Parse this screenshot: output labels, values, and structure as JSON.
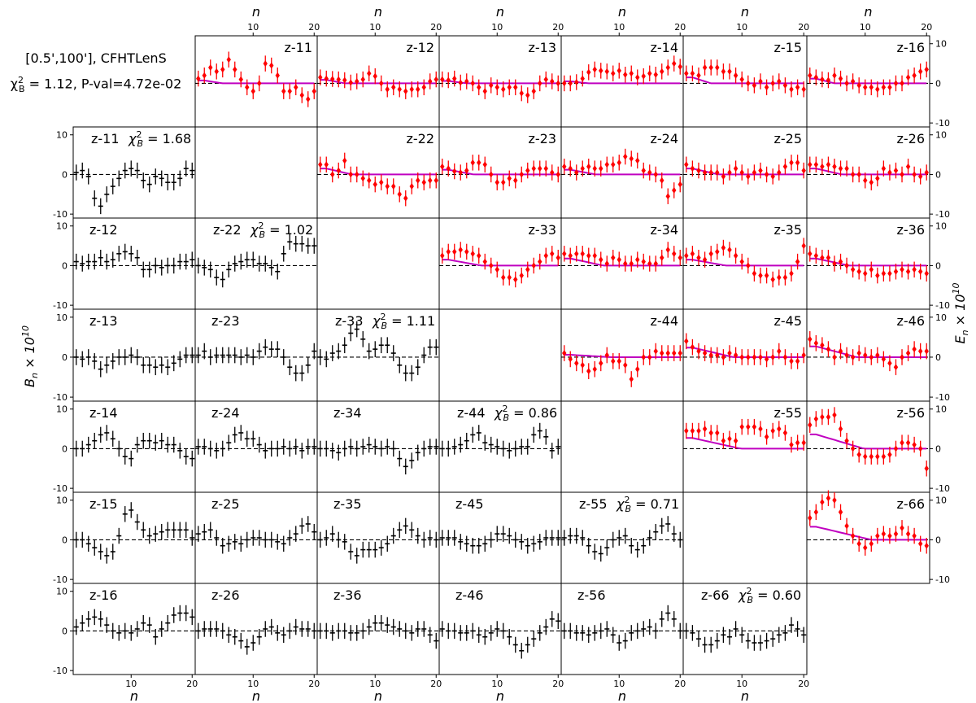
{
  "figure": {
    "header_line1": "[0.5',100'],  CFHTLenS",
    "header_line2_prefix": "χ",
    "header_line2": "= 1.12, P-val=4.72e-02",
    "x_label": "n",
    "b_label": "Bn × 10^10",
    "e_label": "En × 10^10",
    "x_ticks": [
      10,
      20
    ],
    "y_ticks": [
      -10,
      0,
      10
    ]
  },
  "chart_data": {
    "type": "scatter",
    "xlim": [
      0.5,
      20.5
    ],
    "ylim": [
      -11,
      12
    ],
    "grid": false,
    "colors": {
      "e_points": "#ff0000",
      "b_points": "#000000",
      "model": "#c000c0",
      "zero_line": "#000000"
    },
    "e_modes": [
      {
        "label": "z-11",
        "values": [
          1.2,
          2,
          4,
          3,
          3.5,
          6,
          3.5,
          1,
          -1,
          -2,
          0,
          5,
          4.5,
          2,
          -2,
          -2,
          -1,
          -3,
          -4,
          -2
        ]
      },
      {
        "label": "z-12",
        "values": [
          1.5,
          1.2,
          1.1,
          1,
          0.8,
          0.2,
          0.5,
          1,
          2.5,
          1.8,
          0,
          -1.5,
          -1,
          -1.5,
          -2,
          -1.5,
          -1.5,
          -1,
          0.5,
          1
        ]
      },
      {
        "label": "z-13",
        "values": [
          1,
          0.8,
          1.2,
          0.2,
          0.5,
          0,
          -1,
          -2,
          -0.5,
          -1,
          -1.5,
          -1,
          -1,
          -2.5,
          -3,
          -2,
          0,
          1,
          0.5,
          0
        ]
      },
      {
        "label": "z-14",
        "values": [
          0,
          0,
          0.3,
          1.2,
          2.8,
          3.5,
          3.2,
          3,
          2.5,
          3.2,
          2.2,
          2.5,
          1.5,
          1.8,
          2.5,
          2.2,
          3,
          4,
          5,
          4.2
        ]
      },
      {
        "label": "z-15",
        "values": [
          2.5,
          2.5,
          2,
          4,
          4,
          4,
          3,
          3,
          2,
          1,
          0,
          -0.5,
          0.5,
          -1,
          0,
          0.5,
          -0.5,
          -1.5,
          -1,
          -1.5
        ]
      },
      {
        "label": "z-16",
        "values": [
          2,
          1.5,
          1,
          0.8,
          2,
          1.2,
          0,
          0.5,
          -0.5,
          -1,
          -1,
          -1.5,
          -1,
          -1,
          0,
          0,
          1.5,
          2,
          3,
          3.5
        ]
      },
      {
        "label": "z-22",
        "values": [
          2.5,
          2.5,
          0,
          1,
          3.5,
          0,
          0,
          -1,
          -1.5,
          -2.5,
          -2,
          -3,
          -3,
          -5,
          -6,
          -3,
          -1.5,
          -2,
          -1.5,
          -1.5
        ]
      },
      {
        "label": "z-23",
        "values": [
          2,
          1.5,
          0.8,
          0.5,
          1,
          3,
          3,
          2.5,
          0,
          -2,
          -2,
          -1,
          -1.5,
          0,
          1,
          1.5,
          1.5,
          1.5,
          0.5,
          0
        ]
      },
      {
        "label": "z-24",
        "values": [
          2,
          1.5,
          0.5,
          1.5,
          2,
          1.5,
          1.5,
          2.5,
          2.5,
          3,
          4.5,
          4,
          3.5,
          1,
          0.5,
          0,
          -1.5,
          -5.5,
          -4,
          -2.5
        ]
      },
      {
        "label": "z-25",
        "values": [
          2.5,
          1.5,
          1,
          0.5,
          0.5,
          0.5,
          -0.5,
          0.5,
          1.5,
          0.5,
          -0.5,
          0.5,
          1,
          0,
          -0.5,
          0.5,
          2,
          3,
          3,
          1
        ]
      },
      {
        "label": "z-26",
        "values": [
          2.5,
          2.5,
          2,
          2.5,
          2,
          1.5,
          1.5,
          0,
          0,
          -1.5,
          -2,
          -1,
          1.5,
          0.5,
          1,
          0,
          2,
          0,
          -0.5,
          0.5
        ]
      },
      {
        "label": "z-33",
        "values": [
          2.5,
          3.5,
          3.5,
          4,
          3.5,
          3,
          2.5,
          1,
          0,
          -1,
          -3,
          -3,
          -3.5,
          -2.5,
          -1,
          0,
          1,
          2.5,
          3,
          2
        ]
      },
      {
        "label": "z-34",
        "values": [
          3,
          2.5,
          3,
          3,
          2.5,
          2.5,
          1.5,
          0.5,
          2,
          1.5,
          0.5,
          0.5,
          1.5,
          1,
          0.5,
          0.5,
          2,
          4,
          3,
          2
        ]
      },
      {
        "label": "z-35",
        "values": [
          2.5,
          3,
          2,
          1.5,
          3,
          3.5,
          4.5,
          4,
          2.5,
          1,
          0,
          -2,
          -2.5,
          -2.5,
          -3.5,
          -3,
          -3,
          -2,
          1,
          5
        ]
      },
      {
        "label": "z-36",
        "values": [
          3,
          2.5,
          2,
          2,
          0.5,
          1,
          0,
          -1,
          -1.5,
          -2,
          -1,
          -2.5,
          -2,
          -2,
          -1.5,
          -1,
          -1.5,
          -1,
          -1.5,
          -2
        ]
      },
      {
        "label": "z-44",
        "values": [
          1,
          -0.5,
          -1.5,
          -2,
          -3.5,
          -3,
          -1.5,
          0.5,
          -1,
          -1,
          -2,
          -5.5,
          -3,
          0,
          0,
          1.5,
          1,
          1,
          1,
          1
        ]
      },
      {
        "label": "z-45",
        "values": [
          4,
          2.5,
          1.5,
          1,
          0.5,
          0.5,
          0,
          1,
          0.5,
          0,
          0,
          0,
          0,
          -0.5,
          0,
          1.5,
          0,
          -1,
          -1,
          0.5
        ]
      },
      {
        "label": "z-46",
        "values": [
          4.5,
          3.5,
          3,
          2,
          0,
          1.5,
          0.5,
          0,
          1,
          0.5,
          0,
          0.5,
          -0.5,
          -1.5,
          -2.5,
          0,
          1,
          2,
          1.5,
          1.5
        ]
      },
      {
        "label": "z-55",
        "values": [
          4.5,
          4.5,
          4.5,
          5,
          4,
          4,
          2,
          2.5,
          2,
          5.5,
          5.5,
          5.5,
          5,
          3,
          4.5,
          5,
          4,
          1,
          1.5,
          1.5
        ]
      },
      {
        "label": "z-56",
        "values": [
          6,
          7.5,
          8,
          8,
          8.5,
          5,
          2,
          0,
          -1.5,
          -2,
          -2,
          -2,
          -2,
          -1.5,
          0,
          1.5,
          1.5,
          1,
          0,
          -5
        ]
      },
      {
        "label": "z-66",
        "values": [
          5.5,
          7,
          9.5,
          10.5,
          10,
          7,
          3.5,
          1,
          -1,
          -2,
          -1,
          1,
          1.5,
          1,
          1.5,
          3,
          1.5,
          1,
          -1,
          -1.5
        ]
      }
    ],
    "b_modes": [
      {
        "label": "z-11",
        "chi2": "1.68",
        "values": [
          0.5,
          1,
          -0.5,
          -6,
          -8,
          -5,
          -3,
          -1,
          1,
          1.5,
          1,
          -1.5,
          -2.5,
          -0.5,
          -1,
          -2,
          -2,
          -1,
          1.5,
          1
        ]
      },
      {
        "label": "z-12",
        "chi2": "",
        "values": [
          1,
          0.5,
          1,
          1,
          2,
          1,
          1.5,
          3,
          3.5,
          3,
          2,
          -1,
          -1,
          0,
          -0.5,
          0,
          0,
          1,
          1,
          1.5
        ]
      },
      {
        "label": "z-22",
        "chi2": "1.02",
        "values": [
          0,
          -0.5,
          -1,
          -3,
          -3.5,
          -1,
          0.5,
          1,
          1.5,
          1.5,
          0.5,
          0.5,
          -0.5,
          -1.5,
          3,
          6,
          5.5,
          5.5,
          5,
          5
        ]
      },
      {
        "label": "z-13",
        "chi2": "",
        "values": [
          0,
          -0.5,
          0,
          -1,
          -3,
          -2,
          -1,
          0,
          0,
          0.5,
          0,
          -2,
          -2,
          -2.5,
          -2,
          -2.5,
          -1.5,
          -0.5,
          0.5,
          0.5
        ]
      },
      {
        "label": "z-23",
        "chi2": "",
        "values": [
          0.5,
          1.5,
          0,
          0.5,
          0.5,
          0.5,
          0.5,
          0,
          0.5,
          0,
          1.5,
          2.5,
          2,
          2,
          0,
          -2.5,
          -4,
          -4,
          -2,
          1.5
        ]
      },
      {
        "label": "z-33",
        "chi2": "1.11",
        "values": [
          0,
          -0.5,
          1,
          1.5,
          3,
          6,
          7,
          4.5,
          1.5,
          2,
          3,
          3,
          1,
          -2,
          -4,
          -4,
          -2.5,
          0.5,
          2.5,
          2.5
        ]
      },
      {
        "label": "z-14",
        "chi2": "",
        "values": [
          0,
          0,
          1,
          2,
          3.5,
          4,
          2.5,
          0,
          -2,
          -2.5,
          1,
          2,
          2,
          1.5,
          2,
          1,
          1,
          -0.5,
          -2,
          -2.5
        ]
      },
      {
        "label": "z-24",
        "chi2": "",
        "values": [
          0.5,
          0.5,
          0,
          -0.5,
          0,
          1.5,
          3.5,
          4,
          2.5,
          2.5,
          1,
          -0.5,
          0,
          0,
          0.5,
          0,
          0.5,
          -0.5,
          0.5,
          0.5
        ]
      },
      {
        "label": "z-34",
        "chi2": "",
        "values": [
          0,
          0,
          -0.5,
          -1,
          0,
          0.5,
          0,
          0.5,
          1,
          0.5,
          0,
          0.5,
          0,
          -2.5,
          -4.5,
          -3,
          -1,
          0,
          0.5,
          0.5
        ]
      },
      {
        "label": "z-44",
        "chi2": "0.86",
        "values": [
          0,
          0,
          0.5,
          1,
          2,
          3.5,
          4,
          1.5,
          1,
          0.5,
          0,
          -0.5,
          0,
          0.5,
          0.5,
          3.5,
          4.5,
          3,
          -0.5,
          0.5
        ]
      },
      {
        "label": "z-15",
        "chi2": "",
        "values": [
          0,
          0,
          -1,
          -2,
          -3,
          -4,
          -3,
          1,
          6.5,
          7.5,
          4.5,
          2.5,
          1,
          1.5,
          2,
          2.5,
          2.5,
          2.5,
          2.5,
          0.5
        ]
      },
      {
        "label": "z-25",
        "chi2": "",
        "values": [
          1.5,
          2,
          2.5,
          0.5,
          -1.5,
          -1,
          -0.5,
          -1,
          0,
          0.5,
          0.5,
          0,
          0,
          -0.5,
          -1,
          0.5,
          1.5,
          3.5,
          4,
          2
        ]
      },
      {
        "label": "z-35",
        "chi2": "",
        "values": [
          0,
          0.5,
          1.5,
          0,
          -0.5,
          -3,
          -4,
          -2.5,
          -2.5,
          -2.5,
          -2,
          -1,
          1,
          2.5,
          3.5,
          2.5,
          1,
          0,
          0.5,
          0
        ]
      },
      {
        "label": "z-45",
        "chi2": "",
        "values": [
          0.5,
          0.5,
          0.5,
          -0.5,
          -1,
          -1.5,
          -1.5,
          -1,
          0,
          1.5,
          1.5,
          1,
          0,
          -0.5,
          -1.5,
          -1,
          -0.5,
          0.5,
          0.5,
          0.5
        ]
      },
      {
        "label": "z-55",
        "chi2": "0.71",
        "values": [
          0.5,
          1,
          1,
          0.5,
          -1.5,
          -3,
          -3.5,
          -2,
          0,
          0.5,
          1,
          -1.5,
          -2.5,
          -1.5,
          0.5,
          2,
          3.5,
          4,
          1.5,
          0
        ]
      },
      {
        "label": "z-16",
        "chi2": "",
        "values": [
          1,
          2,
          3,
          3.5,
          3,
          1.5,
          0,
          -0.5,
          0,
          -0.5,
          0.5,
          2,
          1.5,
          -1.5,
          0.5,
          2,
          4,
          4.5,
          4.5,
          3.5
        ]
      },
      {
        "label": "z-26",
        "chi2": "",
        "values": [
          0,
          0.5,
          0.5,
          0.5,
          0,
          -1,
          -1.5,
          -2.5,
          -4,
          -3,
          -1.5,
          0.5,
          1,
          -0.5,
          -1,
          0,
          1,
          0.5,
          0.5,
          0
        ]
      },
      {
        "label": "z-36",
        "chi2": "",
        "values": [
          0,
          0,
          -0.5,
          0,
          0,
          -0.5,
          -0.5,
          0,
          1,
          2,
          2,
          1.5,
          1,
          0.5,
          0,
          -0.5,
          0.5,
          0.5,
          -1,
          -2.5
        ]
      },
      {
        "label": "z-46",
        "chi2": "",
        "values": [
          0.5,
          0,
          0,
          -0.5,
          -0.5,
          0,
          -1,
          -1.5,
          -0.5,
          0.5,
          0,
          -1.5,
          -3.5,
          -5,
          -3.5,
          -2,
          -0.5,
          1,
          3,
          2.5
        ]
      },
      {
        "label": "z-56",
        "chi2": "",
        "values": [
          0,
          0,
          -0.5,
          -0.5,
          -1,
          -0.5,
          0,
          0.5,
          -1,
          -3,
          -2.5,
          -0.5,
          0,
          0.5,
          1,
          0,
          3,
          4.5,
          3,
          0
        ]
      },
      {
        "label": "z-66",
        "chi2": "0.60",
        "values": [
          0,
          -0.5,
          -2,
          -3.5,
          -3.5,
          -2.5,
          -1,
          -1.5,
          0.5,
          -1,
          -2.5,
          -3,
          -3,
          -2.5,
          -2,
          -1,
          -0.5,
          1.5,
          0.5,
          -1
        ]
      }
    ]
  }
}
